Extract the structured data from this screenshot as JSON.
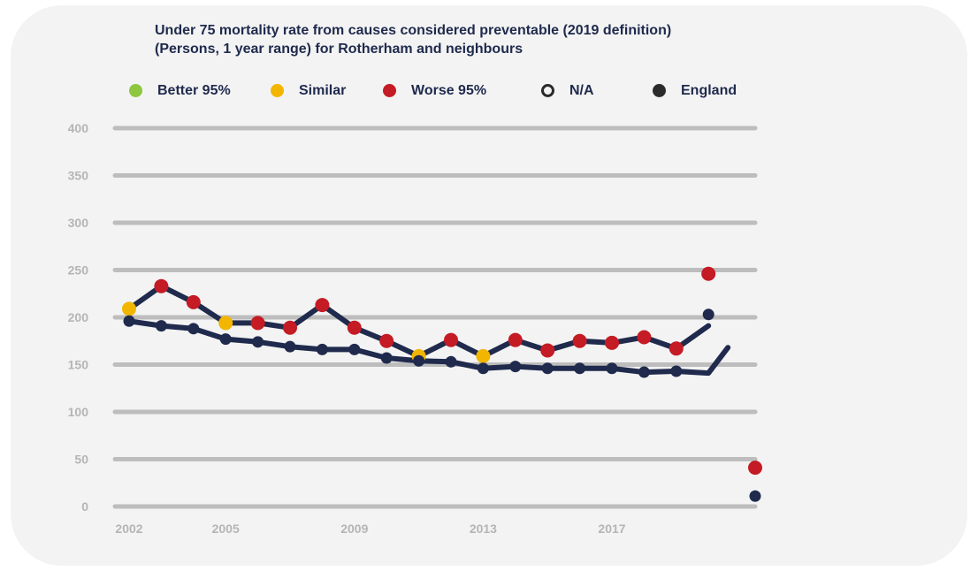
{
  "chart_data": {
    "type": "line",
    "title_lines": [
      "Under 75 mortality rate from causes considered preventable (2019 definition)",
      "(Persons, 1 year range) for Rotherham and neighbours"
    ],
    "legend": [
      {
        "label": "Better 95%",
        "color": "#8dc63f",
        "style": "filled"
      },
      {
        "label": "Similar",
        "color": "#f2b600",
        "style": "filled"
      },
      {
        "label": "Worse 95%",
        "color": "#c41b24",
        "style": "filled"
      },
      {
        "label": "N/A",
        "color": "#2b2b2b",
        "style": "hollow"
      },
      {
        "label": "England",
        "color": "#2b2b2b",
        "style": "filled"
      }
    ],
    "ylim": [
      0,
      400
    ],
    "y_ticks": [
      0,
      50,
      100,
      150,
      200,
      250,
      300,
      350,
      400
    ],
    "x_tick_labels": [
      "2002",
      "2005",
      "2009",
      "2013",
      "2017"
    ],
    "x_tick_positions": [
      2002,
      2005,
      2009,
      2013,
      2017
    ],
    "grid": true,
    "series": [
      {
        "line_color": "#1f2a4d",
        "x": [
          2002,
          2003,
          2004,
          2005,
          2006,
          2007,
          2008,
          2009,
          2010,
          2011,
          2012,
          2013,
          2014,
          2015,
          2016,
          2017,
          2018,
          2019,
          2020
        ],
        "values": [
          209,
          233,
          216,
          194,
          194,
          189,
          213,
          189,
          175,
          159,
          176,
          159,
          176,
          165,
          175,
          173,
          179,
          167,
          191
        ],
        "marker_status": [
          "Similar",
          "Worse 95%",
          "Worse 95%",
          "Similar",
          "Worse 95%",
          "Worse 95%",
          "Worse 95%",
          "Worse 95%",
          "Worse 95%",
          "Similar",
          "Worse 95%",
          "Similar",
          "Worse 95%",
          "Worse 95%",
          "Worse 95%",
          "Worse 95%",
          "Worse 95%",
          "Worse 95%",
          null
        ]
      },
      {
        "name": "England",
        "line_color": "#1f2a4d",
        "x": [
          2002,
          2003,
          2004,
          2005,
          2006,
          2007,
          2008,
          2009,
          2010,
          2011,
          2012,
          2013,
          2014,
          2015,
          2016,
          2017,
          2018,
          2019,
          2020
        ],
        "values": [
          196,
          191,
          188,
          177,
          174,
          169,
          166,
          166,
          157,
          154,
          153,
          146,
          148,
          146,
          146,
          146,
          142,
          143,
          141
        ],
        "marker_status": [
          "England",
          "England",
          "England",
          "England",
          "England",
          "England",
          "England",
          "England",
          "England",
          "England",
          "England",
          "England",
          "England",
          "England",
          "England",
          "England",
          "England",
          "England",
          null
        ],
        "tail": [
          {
            "x": 2020,
            "value": 168
          }
        ]
      }
    ],
    "extra_points": [
      {
        "x": 2020,
        "value": 246,
        "status": "Worse 95%"
      },
      {
        "x": 2020,
        "value": 203,
        "status": "England"
      },
      {
        "x": 2021,
        "value": 41,
        "status": "Worse 95%"
      },
      {
        "x": 2021,
        "value": 11,
        "status": "England"
      }
    ]
  }
}
